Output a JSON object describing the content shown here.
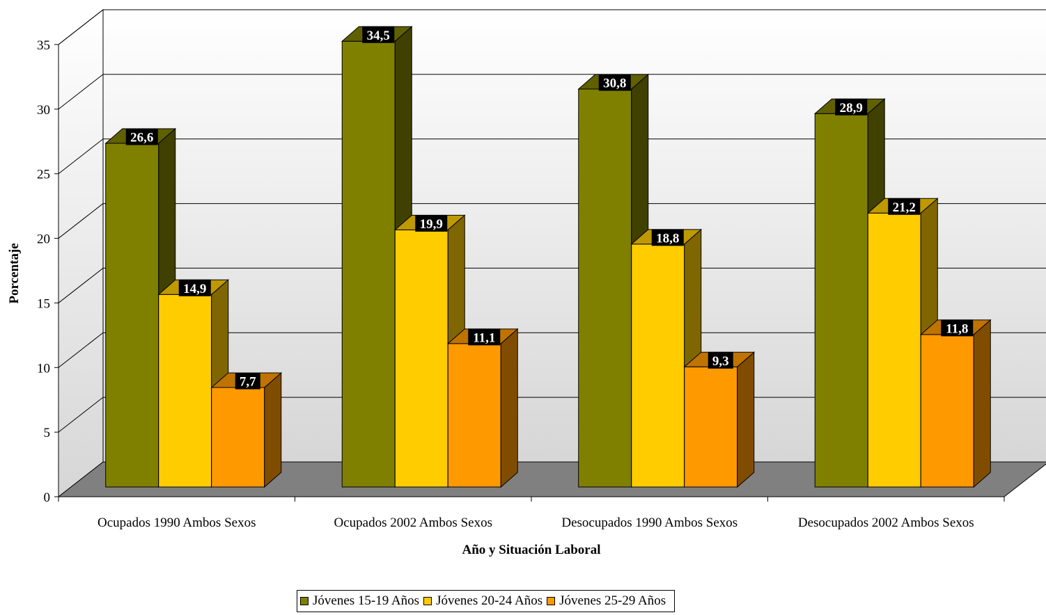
{
  "chart_data": {
    "type": "bar",
    "categories": [
      "Ocupados 1990 Ambos Sexos",
      "Ocupados 2002 Ambos Sexos",
      "Desocupados 1990 Ambos Sexos",
      "Desocupados 2002 Ambos Sexos"
    ],
    "series": [
      {
        "name": "Jóvenes 15-19 Años",
        "values": [
          26.6,
          34.5,
          30.8,
          28.9
        ],
        "labels": [
          "26,6",
          "34,5",
          "30,8",
          "28,9"
        ],
        "color": "#808000"
      },
      {
        "name": "Jóvenes 20-24 Años",
        "values": [
          14.9,
          19.9,
          18.8,
          21.2
        ],
        "labels": [
          "14,9",
          "19,9",
          "18,8",
          "21,2"
        ],
        "color": "#FFCC00"
      },
      {
        "name": "Jóvenes 25-29 Años",
        "values": [
          7.7,
          11.1,
          9.3,
          11.8
        ],
        "labels": [
          "7,7",
          "11,1",
          "9,3",
          "11,8"
        ],
        "color": "#FF9900"
      }
    ],
    "xlabel": "Año y Situación Laboral",
    "ylabel": "Porcentaje",
    "ylim": [
      0,
      35
    ],
    "yticks": [
      "0",
      "5",
      "10",
      "15",
      "20",
      "25",
      "30",
      "35"
    ],
    "grid": true,
    "legend_position": "bottom",
    "style": "3d-clustered"
  }
}
